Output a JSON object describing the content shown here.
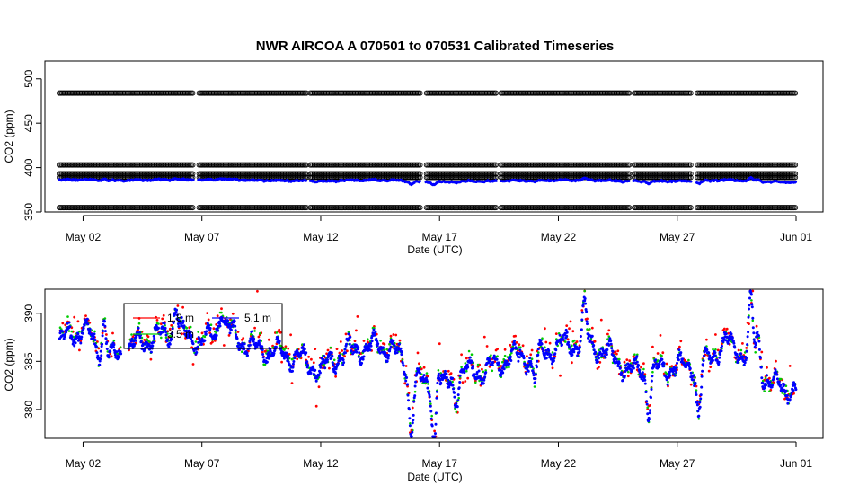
{
  "chart_data": [
    {
      "type": "scatter",
      "title": "NWR   AIRCOA  A    070501  to  070531   Calibrated Timeseries",
      "xlabel": "Date (UTC)",
      "ylabel": "CO2 (ppm)",
      "x_ticks": [
        "May 02",
        "May 07",
        "May 12",
        "May 17",
        "May 22",
        "May 27",
        "Jun 01"
      ],
      "y_ticks": [
        350,
        400,
        450,
        500
      ],
      "xlim": [
        "2007-05-01",
        "2007-06-01"
      ],
      "ylim": [
        350,
        520
      ],
      "grid": false,
      "series": [
        {
          "kind": "calibration standards",
          "color": "#000000",
          "marker": "open-circle",
          "levels": [
            484,
            403,
            393,
            389,
            355
          ]
        },
        {
          "kind": "sample air",
          "color": "#0000ff",
          "approx_level": 385
        }
      ]
    },
    {
      "type": "scatter",
      "xlabel": "Date (UTC)",
      "ylabel": "CO2 (ppm)",
      "x_ticks": [
        "May 02",
        "May 07",
        "May 12",
        "May 17",
        "May 22",
        "May 27",
        "Jun 01"
      ],
      "y_ticks": [
        380,
        385,
        390
      ],
      "xlim": [
        "2007-05-01",
        "2007-06-01"
      ],
      "ylim": [
        377,
        392.5
      ],
      "grid": false,
      "legend_position": "top-left",
      "series": [
        {
          "name": "1.8 m",
          "color": "#ff0000"
        },
        {
          "name": "3.5 m",
          "color": "#00cc00"
        },
        {
          "name": "5.1 m",
          "color": "#0000ff"
        }
      ],
      "daily_mean_ppm": [
        {
          "date": "2007-05-01",
          "value": 387.0
        },
        {
          "date": "2007-05-02",
          "value": 388.5
        },
        {
          "date": "2007-05-03",
          "value": 385.0
        },
        {
          "date": "2007-05-04",
          "value": 386.5
        },
        {
          "date": "2007-05-05",
          "value": 387.5
        },
        {
          "date": "2007-05-06",
          "value": 388.0
        },
        {
          "date": "2007-05-07",
          "value": 387.0
        },
        {
          "date": "2007-05-08",
          "value": 388.5
        },
        {
          "date": "2007-05-09",
          "value": 386.5
        },
        {
          "date": "2007-05-10",
          "value": 386.0
        },
        {
          "date": "2007-05-11",
          "value": 385.5
        },
        {
          "date": "2007-05-12",
          "value": 384.0
        },
        {
          "date": "2007-05-13",
          "value": 386.0
        },
        {
          "date": "2007-05-14",
          "value": 386.5
        },
        {
          "date": "2007-05-15",
          "value": 386.5
        },
        {
          "date": "2007-05-16",
          "value": 383.0
        },
        {
          "date": "2007-05-17",
          "value": 382.0
        },
        {
          "date": "2007-05-18",
          "value": 384.0
        },
        {
          "date": "2007-05-19",
          "value": 384.0
        },
        {
          "date": "2007-05-20",
          "value": 385.5
        },
        {
          "date": "2007-05-21",
          "value": 385.5
        },
        {
          "date": "2007-05-22",
          "value": 386.5
        },
        {
          "date": "2007-05-23",
          "value": 387.0
        },
        {
          "date": "2007-05-24",
          "value": 386.0
        },
        {
          "date": "2007-05-25",
          "value": 384.0
        },
        {
          "date": "2007-05-26",
          "value": 384.0
        },
        {
          "date": "2007-05-27",
          "value": 384.5
        },
        {
          "date": "2007-05-28",
          "value": 384.5
        },
        {
          "date": "2007-05-29",
          "value": 387.0
        },
        {
          "date": "2007-05-30",
          "value": 385.5
        },
        {
          "date": "2007-05-31",
          "value": 382.5
        },
        {
          "date": "2007-06-01",
          "value": 382.0
        }
      ]
    }
  ]
}
